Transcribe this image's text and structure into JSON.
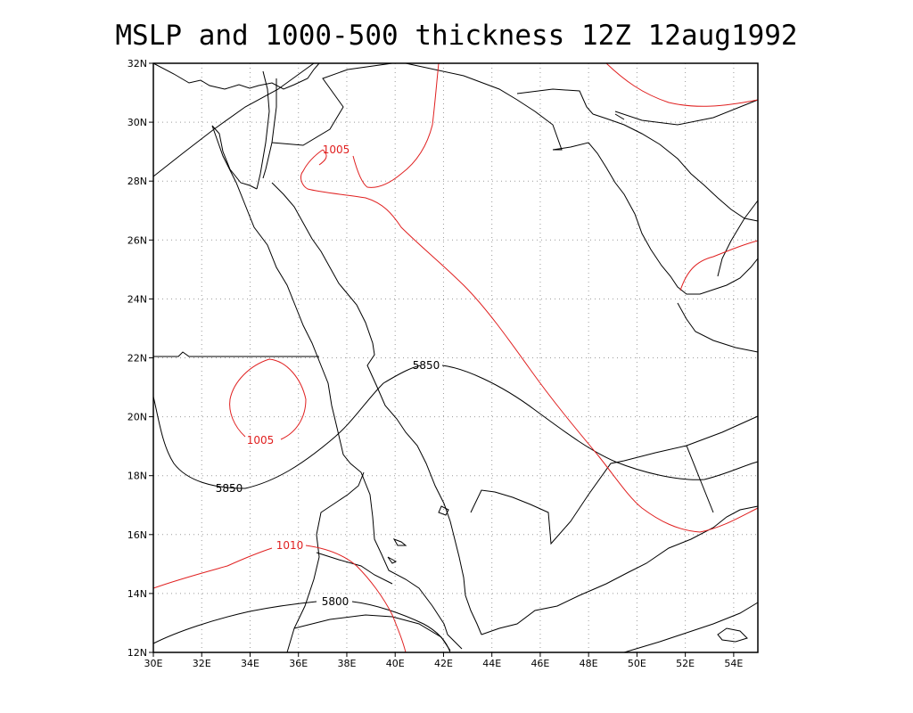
{
  "title": "MSLP and 1000-500 thickness 12Z 12aug1992",
  "colors": {
    "pressure_contour": "#e02020",
    "thickness_contour": "#000000",
    "coastline": "#000000",
    "grid": "#999999"
  },
  "axes": {
    "lon_labels": [
      "30E",
      "32E",
      "34E",
      "36E",
      "38E",
      "40E",
      "42E",
      "44E",
      "46E",
      "48E",
      "50E",
      "52E",
      "54E"
    ],
    "lat_labels": [
      "12N",
      "14N",
      "16N",
      "18N",
      "20N",
      "22N",
      "24N",
      "26N",
      "28N",
      "30N",
      "32N"
    ],
    "lon_range": [
      30,
      55
    ],
    "lat_range": [
      12,
      32
    ],
    "grid": true
  },
  "contour_labels": {
    "thickness": [
      "5850",
      "5850",
      "5800"
    ],
    "pressure": [
      "1005",
      "1005",
      "1010"
    ]
  }
}
